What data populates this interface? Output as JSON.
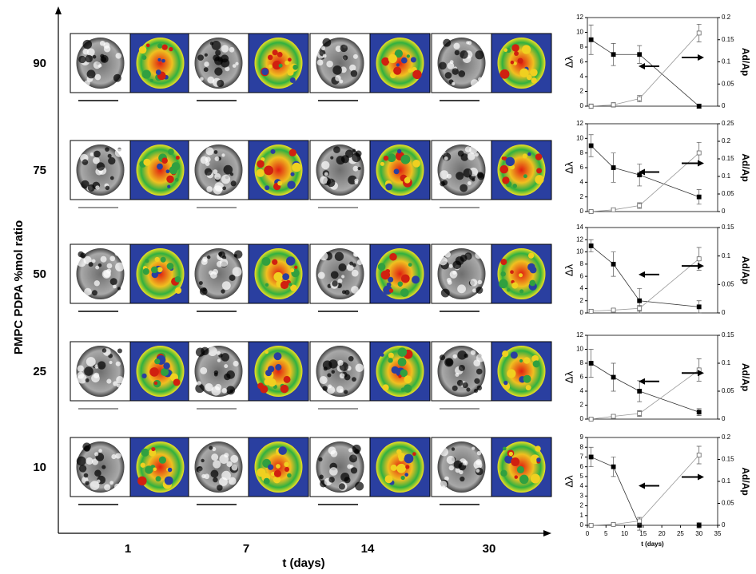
{
  "figure": {
    "y_axis_label": "PMPC PDPA %mol ratio",
    "x_axis_label": "t (days)",
    "rows": [
      "90",
      "75",
      "50",
      "25",
      "10"
    ],
    "columns": [
      "1",
      "7",
      "14",
      "30"
    ]
  },
  "chart_data": [
    {
      "type": "line",
      "xlim": [
        0,
        35
      ],
      "ylim": [
        0,
        12
      ],
      "yticks": [
        0,
        2,
        4,
        6,
        8,
        10,
        12
      ],
      "y2lim": [
        0,
        0.2
      ],
      "y2ticks": [
        0,
        0.05,
        0.1,
        0.15,
        0.2
      ],
      "ylabel": "Δλ",
      "y2label": "Ad/Ap",
      "x": [
        1,
        7,
        14,
        30
      ],
      "series": [
        {
          "color": "#000000",
          "values": [
            9,
            7,
            7,
            0
          ],
          "errors": [
            2,
            1.5,
            1.2,
            0.3
          ]
        },
        {
          "color": "#ffffff",
          "axis": "y2",
          "values": [
            0,
            0.003,
            0.017,
            0.165
          ],
          "errors": [
            0.005,
            0.005,
            0.007,
            0.02
          ]
        }
      ]
    },
    {
      "type": "line",
      "xlim": [
        0,
        35
      ],
      "ylim": [
        0,
        12
      ],
      "yticks": [
        0,
        2,
        4,
        6,
        8,
        10,
        12
      ],
      "y2lim": [
        0,
        0.25
      ],
      "y2ticks": [
        0,
        0.05,
        0.1,
        0.15,
        0.2,
        0.25
      ],
      "ylabel": "Δλ",
      "y2label": "Ad/Ap",
      "x": [
        1,
        7,
        14,
        30
      ],
      "series": [
        {
          "color": "#000000",
          "values": [
            9,
            6,
            5,
            2
          ],
          "errors": [
            1.5,
            2,
            1.5,
            1
          ]
        },
        {
          "color": "#ffffff",
          "axis": "y2",
          "values": [
            0,
            0.005,
            0.017,
            0.167
          ],
          "errors": [
            0.004,
            0.005,
            0.008,
            0.03
          ]
        }
      ]
    },
    {
      "type": "line",
      "xlim": [
        0,
        35
      ],
      "ylim": [
        0,
        14
      ],
      "yticks": [
        0,
        2,
        4,
        6,
        8,
        10,
        12,
        14
      ],
      "y2lim": [
        0,
        0.15
      ],
      "y2ticks": [
        0,
        0.05,
        0.1,
        0.15
      ],
      "ylabel": "Δλ",
      "y2label": "Ad/Ap",
      "x": [
        1,
        7,
        14,
        30
      ],
      "series": [
        {
          "color": "#000000",
          "values": [
            11,
            8,
            2,
            1
          ],
          "errors": [
            1,
            2,
            2,
            1
          ]
        },
        {
          "color": "#ffffff",
          "axis": "y2",
          "values": [
            0.003,
            0.005,
            0.008,
            0.095
          ],
          "errors": [
            0.003,
            0.003,
            0.005,
            0.02
          ]
        }
      ]
    },
    {
      "type": "line",
      "xlim": [
        0,
        35
      ],
      "ylim": [
        0,
        12
      ],
      "yticks": [
        0,
        2,
        4,
        6,
        8,
        10,
        12
      ],
      "y2lim": [
        0,
        0.15
      ],
      "y2ticks": [
        0,
        0.05,
        0.1,
        0.15
      ],
      "ylabel": "Δλ",
      "y2label": "Ad/Ap",
      "x": [
        1,
        7,
        14,
        30
      ],
      "series": [
        {
          "color": "#000000",
          "values": [
            8,
            6,
            4,
            1
          ],
          "errors": [
            2,
            2,
            1.5,
            0.5
          ]
        },
        {
          "color": "#ffffff",
          "axis": "y2",
          "values": [
            0,
            0.005,
            0.01,
            0.088
          ],
          "errors": [
            0.002,
            0.003,
            0.005,
            0.02
          ]
        }
      ]
    },
    {
      "type": "line",
      "xlim": [
        0,
        35
      ],
      "xticks": [
        0,
        5,
        10,
        15,
        20,
        25,
        30,
        35
      ],
      "xlabel": "t (days)",
      "ylim": [
        0,
        9
      ],
      "yticks": [
        0,
        1,
        2,
        3,
        4,
        5,
        6,
        7,
        8,
        9
      ],
      "y2lim": [
        0,
        0.2
      ],
      "y2ticks": [
        0,
        0.05,
        0.1,
        0.15,
        0.2
      ],
      "ylabel": "Δλ",
      "y2label": "Ad/Ap",
      "x": [
        1,
        7,
        14,
        30
      ],
      "series": [
        {
          "color": "#000000",
          "values": [
            7,
            6,
            0,
            0
          ],
          "errors": [
            1,
            1,
            0.5,
            0.3
          ]
        },
        {
          "color": "#ffffff",
          "axis": "y2",
          "values": [
            0,
            0.002,
            0.01,
            0.16
          ],
          "errors": [
            0.002,
            0.002,
            0.008,
            0.02
          ]
        }
      ]
    }
  ]
}
